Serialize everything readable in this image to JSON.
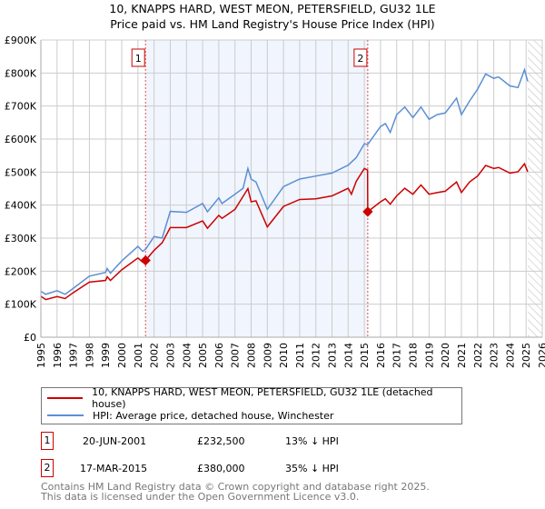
{
  "chart_data": {
    "type": "line",
    "title": "10, KNAPPS HARD, WEST MEON, PETERSFIELD, GU32 1LE",
    "subtitle": "Price paid vs. HM Land Registry's House Price Index (HPI)",
    "xlim": [
      1995,
      2026
    ],
    "ylim": [
      0,
      900000
    ],
    "x_ticks": [
      "1995",
      "1996",
      "1997",
      "1998",
      "1999",
      "2000",
      "2001",
      "2002",
      "2003",
      "2004",
      "2005",
      "2006",
      "2007",
      "2008",
      "2009",
      "2010",
      "2011",
      "2012",
      "2013",
      "2014",
      "2015",
      "2016",
      "2017",
      "2018",
      "2019",
      "2020",
      "2021",
      "2022",
      "2023",
      "2024",
      "2025",
      "2026"
    ],
    "y_ticks": [
      {
        "v": 0,
        "label": "£0"
      },
      {
        "v": 100000,
        "label": "£100K"
      },
      {
        "v": 200000,
        "label": "£200K"
      },
      {
        "v": 300000,
        "label": "£300K"
      },
      {
        "v": 400000,
        "label": "£400K"
      },
      {
        "v": 500000,
        "label": "£500K"
      },
      {
        "v": 600000,
        "label": "£600K"
      },
      {
        "v": 700000,
        "label": "£700K"
      },
      {
        "v": 800000,
        "label": "£800K"
      },
      {
        "v": 900000,
        "label": "£900K"
      }
    ],
    "grid": true,
    "future_hatch_from": 2025.1,
    "series": [
      {
        "name": "10, KNAPPS HARD, WEST MEON, PETERSFIELD, GU32 1LE (detached house)",
        "color": "#cc0000",
        "x": [
          1995,
          1995.3,
          1996,
          1996.5,
          1997,
          1998,
          1999,
          1999.1,
          1999.3,
          2000,
          2001,
          2001.3,
          2001.47,
          2002,
          2002.5,
          2003,
          2004,
          2005,
          2005.3,
          2006,
          2006.2,
          2007,
          2007.8,
          2008,
          2008.3,
          2009,
          2010,
          2011,
          2012,
          2013,
          2014,
          2014.2,
          2014.5,
          2015,
          2015.2,
          2015.21,
          2016,
          2016.3,
          2016.6,
          2017,
          2017.5,
          2018,
          2018.5,
          2019,
          2019.5,
          2020,
          2020.7,
          2021,
          2021.5,
          2022,
          2022.5,
          2023,
          2023.3,
          2024,
          2024.5,
          2024.9,
          2025.1
        ],
        "y": [
          124,
          114,
          123,
          117,
          135,
          167,
          172,
          183,
          172,
          204,
          240,
          227,
          232.5,
          263,
          286,
          332,
          332,
          352,
          330,
          369,
          360,
          387,
          450,
          410,
          413,
          334,
          396,
          417,
          419,
          428,
          451,
          433,
          472,
          511,
          506,
          380,
          410,
          419,
          403,
          428,
          451,
          433,
          461,
          433,
          438,
          442,
          470,
          438,
          470,
          488,
          520,
          511,
          514,
          497,
          501,
          525,
          501
        ]
      },
      {
        "name": "HPI: Average price, detached house, Winchester",
        "color": "#5b8fd4",
        "x": [
          1995,
          1995.3,
          1996,
          1996.5,
          1997,
          1998,
          1999,
          1999.1,
          1999.3,
          2000,
          2001,
          2001.3,
          2001.5,
          2002,
          2002.5,
          2003,
          2004,
          2005,
          2005.3,
          2006,
          2006.2,
          2007,
          2007.5,
          2007.8,
          2008,
          2008.3,
          2009,
          2010,
          2011,
          2012,
          2013,
          2014,
          2014.5,
          2015,
          2015.2,
          2016,
          2016.3,
          2016.6,
          2017,
          2017.5,
          2018,
          2018.5,
          2019,
          2019.5,
          2020,
          2020.7,
          2021,
          2021.5,
          2022,
          2022.5,
          2023,
          2023.3,
          2024,
          2024.5,
          2024.9,
          2025.1
        ],
        "y": [
          139,
          130,
          141,
          130,
          148,
          185,
          196,
          208,
          194,
          231,
          275,
          260,
          268,
          305,
          300,
          381,
          378,
          405,
          380,
          422,
          405,
          433,
          451,
          511,
          479,
          470,
          387,
          456,
          479,
          488,
          497,
          521,
          544,
          586,
          583,
          638,
          647,
          620,
          674,
          697,
          665,
          697,
          660,
          674,
          679,
          724,
          674,
          715,
          751,
          797,
          784,
          788,
          761,
          756,
          810,
          775
        ]
      }
    ],
    "y_units_multiplier": 1000,
    "sales": [
      {
        "id": "1",
        "x": 2001.47,
        "price": 232500,
        "date": "20-JUN-2001",
        "price_label": "£232,500",
        "hpi_label": "13% ↓ HPI"
      },
      {
        "id": "2",
        "x": 2015.21,
        "price": 380000,
        "date": "17-MAR-2015",
        "price_label": "£380,000",
        "hpi_label": "35% ↓ HPI"
      }
    ]
  },
  "footer": {
    "line1": "Contains HM Land Registry data © Crown copyright and database right 2025.",
    "line2": "This data is licensed under the Open Government Licence v3.0."
  }
}
